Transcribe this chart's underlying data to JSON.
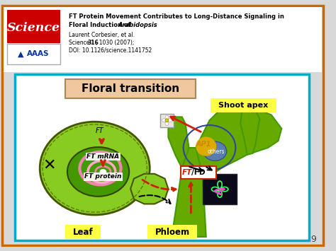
{
  "bg_color": "#d8d8d8",
  "outer_border_color": "#cc6600",
  "inner_border_color": "#00aacc",
  "header_bg": "#ffffff",
  "science_red": "#cc0000",
  "science_blue": "#003399",
  "science_text": "Science",
  "aaas_text": "AAAS",
  "header_line1": "FT Protein Movement Contributes to Long-Distance Signaling in",
  "header_line2_plain": "Floral Induction of  ",
  "header_line2_italic": "Arabidopsis",
  "header_author": "Laurent Corbesier, et al.",
  "header_journal_bold": "316",
  "header_journal": "Science 316, 1030 (2007);",
  "header_doi": "DOI: 10.1126/science.1141752",
  "floral_box_color": "#f0c8a0",
  "floral_text": "Floral transition",
  "shoot_apex_label_bg": "#ffff44",
  "leaf_label_bg": "#ffff44",
  "phloem_label_bg": "#ffff44",
  "green_light": "#88cc22",
  "green_mid": "#66aa00",
  "green_dark": "#449900",
  "green_shoot": "#77bb11",
  "pink_color": "#ee88aa",
  "pink_light": "#ffaacc",
  "slide_number": "9",
  "diagram_bg": "#ffffff",
  "ap1_blue": "#5577cc",
  "ap1_yellow": "#ddaa00",
  "ft_fd_red": "#cc2200"
}
